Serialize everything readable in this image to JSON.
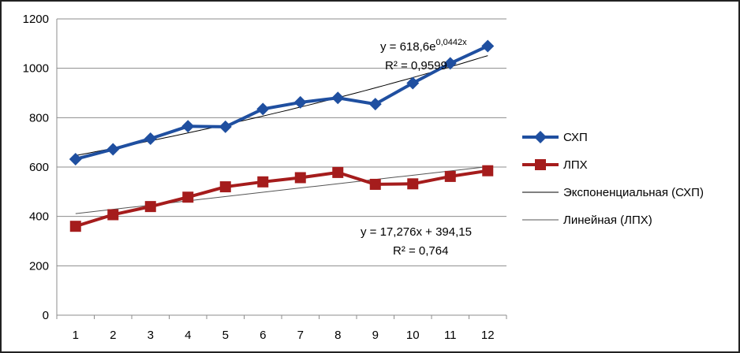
{
  "chart_data": {
    "type": "line",
    "title": "",
    "xlabel": "",
    "ylabel": "",
    "x": [
      1,
      2,
      3,
      4,
      5,
      6,
      7,
      8,
      9,
      10,
      11,
      12
    ],
    "ylim": [
      0,
      1200
    ],
    "yticks": [
      0,
      200,
      400,
      600,
      800,
      1000,
      1200
    ],
    "grid": true,
    "legend_position": "right",
    "series": [
      {
        "name": "СХП",
        "marker": "diamond",
        "color": "#1f4fa0",
        "values": [
          632,
          672,
          715,
          765,
          763,
          835,
          862,
          880,
          855,
          940,
          1020,
          1090
        ]
      },
      {
        "name": "ЛПХ",
        "marker": "square",
        "color": "#a51c1c",
        "values": [
          360,
          407,
          440,
          478,
          520,
          540,
          557,
          578,
          530,
          532,
          562,
          585
        ]
      }
    ],
    "trendlines": [
      {
        "name": "Экспоненциальная (СХП)",
        "kind": "exponential",
        "a": 618.6,
        "b": 0.0442,
        "color": "#000000"
      },
      {
        "name": "Линейная (ЛПХ)",
        "kind": "linear",
        "slope": 17.276,
        "intercept": 394.15,
        "color": "#555555"
      }
    ],
    "annotations": [
      {
        "id": "exp",
        "eq_base": "y = 618,6e",
        "eq_exp": "0,0442x",
        "r2": "R² = 0,9599"
      },
      {
        "id": "lin",
        "eq": "y = 17,276x + 394,15",
        "r2": "R² = 0,764"
      }
    ]
  }
}
